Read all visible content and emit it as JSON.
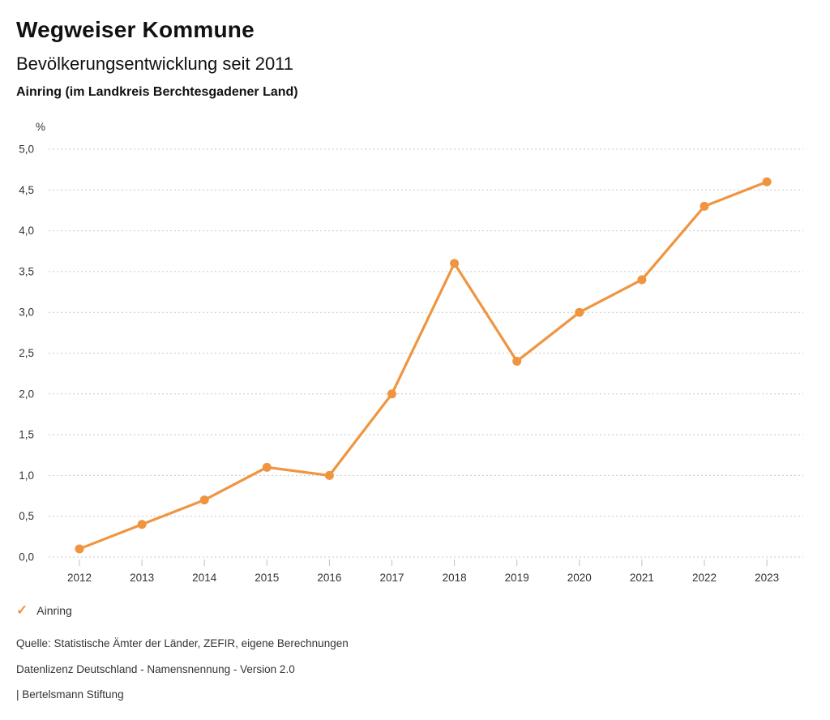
{
  "header": {
    "title": "Wegweiser Kommune",
    "subtitle": "Bevölkerungsentwicklung seit 2011",
    "region": "Ainring (im Landkreis Berchtesgadener Land)"
  },
  "chart_data": {
    "type": "line",
    "title": "Bevölkerungsentwicklung seit 2011 — Ainring (im Landkreis Berchtesgadener Land)",
    "xlabel": "",
    "ylabel": "%",
    "x": [
      "2012",
      "2013",
      "2014",
      "2015",
      "2016",
      "2017",
      "2018",
      "2019",
      "2020",
      "2021",
      "2022",
      "2023"
    ],
    "series": [
      {
        "name": "Ainring",
        "color": "#ef9540",
        "values": [
          0.1,
          0.4,
          0.7,
          1.1,
          1.0,
          2.0,
          3.6,
          2.4,
          3.0,
          3.4,
          4.3,
          4.6
        ]
      }
    ],
    "ylim": [
      0,
      5
    ],
    "ytick_step": 0.5,
    "ytick_labels": [
      "0,0",
      "0,5",
      "1,0",
      "1,5",
      "2,0",
      "2,5",
      "3,0",
      "3,5",
      "4,0",
      "4,5",
      "5,0"
    ],
    "grid": "horizontal-dotted",
    "legend_position": "bottom-left"
  },
  "legend": {
    "items": [
      {
        "label": "Ainring",
        "color": "#ef9540",
        "marker": "check"
      }
    ]
  },
  "footer": {
    "source": "Quelle: Statistische Ämter der Länder, ZEFIR, eigene Berechnungen",
    "license": "Datenlizenz Deutschland - Namensnennung - Version 2.0",
    "attribution": "| Bertelsmann Stiftung"
  }
}
